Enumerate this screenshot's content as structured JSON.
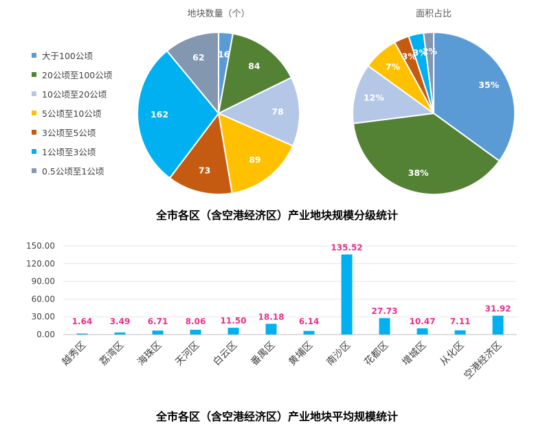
{
  "chart_data": [
    {
      "type": "pie",
      "title": "地块数量（个）",
      "categories": [
        "大于100公顷",
        "20公顷至100公顷",
        "10公顷至20公顷",
        "5公顷至10公顷",
        "3公顷至5公顷",
        "1公顷至3公顷",
        "0.5公顷至1公顷"
      ],
      "values": [
        16,
        84,
        78,
        89,
        73,
        162,
        62
      ],
      "colors": [
        "#5B9BD5",
        "#548235",
        "#B4C7E7",
        "#FFC000",
        "#C55A11",
        "#00B0F0",
        "#8497B0"
      ],
      "legend": "left"
    },
    {
      "type": "pie",
      "title": "面积占比",
      "categories": [
        "大于100公顷",
        "20公顷至100公顷",
        "10公顷至20公顷",
        "5公顷至10公顷",
        "3公顷至5公顷",
        "1公顷至3公顷",
        "0.5公顷至1公顷"
      ],
      "values": [
        35,
        38,
        12,
        7,
        3,
        3,
        2
      ],
      "labels": [
        "35%",
        "38%",
        "12%",
        "7%",
        "3%",
        "3%",
        "2%"
      ],
      "colors": [
        "#5B9BD5",
        "#548235",
        "#B4C7E7",
        "#FFC000",
        "#C55A11",
        "#00B0F0",
        "#8497B0"
      ]
    },
    {
      "type": "bar",
      "title": "全市各区（含空港经济区）产业地块平均规模统计",
      "categories": [
        "越秀区",
        "荔湾区",
        "海珠区",
        "天河区",
        "白云区",
        "番禺区",
        "黄埔区",
        "南沙区",
        "花都区",
        "增城区",
        "从化区",
        "空港经济区"
      ],
      "values": [
        1.64,
        3.49,
        6.71,
        8.06,
        11.5,
        18.18,
        6.14,
        135.52,
        27.73,
        10.47,
        7.11,
        31.92
      ],
      "value_labels": [
        "1.64",
        "3.49",
        "6.71",
        "8.06",
        "11.50",
        "18.18",
        "6.14",
        "135.52",
        "27.73",
        "10.47",
        "7.11",
        "31.92"
      ],
      "yticks": [
        "0.00",
        "30.00",
        "60.00",
        "90.00",
        "120.00",
        "150.00"
      ],
      "ylim": [
        0,
        150
      ],
      "bar_color": "#00B0F0",
      "label_color": "#E8318A",
      "grid": true
    }
  ],
  "captions": {
    "pies": "全市各区（含空港经济区）产业地块规模分级统计",
    "bars": "全市各区（含空港经济区）产业地块平均规模统计"
  }
}
